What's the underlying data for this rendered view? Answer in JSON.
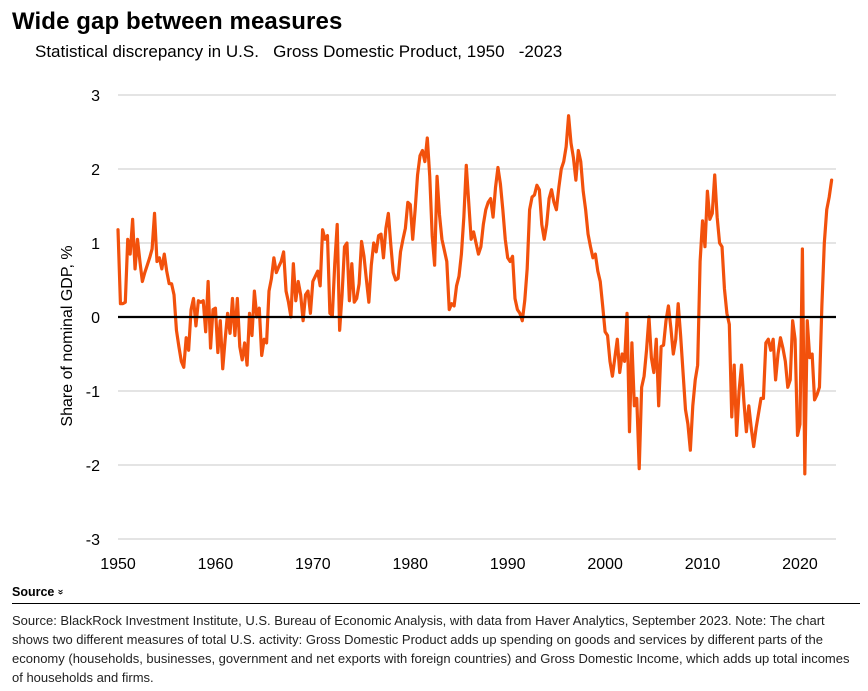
{
  "header": {
    "title": "Wide gap  between measures",
    "subtitle": "Statistical discrepancy in U.S.   Gross Domestic Product, 1950   -2023"
  },
  "chart_data": {
    "type": "line",
    "title": "Wide gap  between measures",
    "subtitle": "Statistical discrepancy in U.S.   Gross Domestic Product, 1950   -2023",
    "xlabel": "",
    "ylabel": "Share of nominal GDP, %",
    "xlim": [
      1950,
      2023.7
    ],
    "ylim": [
      -3,
      3
    ],
    "x_ticks": [
      1950,
      1960,
      1970,
      1980,
      1990,
      2000,
      2010,
      2020
    ],
    "y_ticks": [
      3,
      2,
      1,
      0,
      -1,
      -2,
      -3
    ],
    "y_tick_labels": [
      "3",
      "2",
      "1",
      "0",
      "-1",
      "-2",
      "-3"
    ],
    "grid": "horizontal",
    "zero_line": true,
    "colors": {
      "series": "#f2510c",
      "grid": "#c8c8c8",
      "zero": "#000000"
    },
    "series": [
      {
        "points": [
          [
            1950.0,
            1.18
          ],
          [
            1950.25,
            0.18
          ],
          [
            1950.5,
            0.18
          ],
          [
            1950.75,
            0.2
          ],
          [
            1951.0,
            1.05
          ],
          [
            1951.25,
            0.85
          ],
          [
            1951.5,
            1.32
          ],
          [
            1951.75,
            0.65
          ],
          [
            1952.0,
            1.05
          ],
          [
            1952.25,
            0.75
          ],
          [
            1952.5,
            0.48
          ],
          [
            1952.75,
            0.6
          ],
          [
            1953.0,
            0.7
          ],
          [
            1953.25,
            0.8
          ],
          [
            1953.5,
            0.92
          ],
          [
            1953.75,
            1.4
          ],
          [
            1954.0,
            0.75
          ],
          [
            1954.25,
            0.8
          ],
          [
            1954.5,
            0.65
          ],
          [
            1954.75,
            0.85
          ],
          [
            1955.0,
            0.62
          ],
          [
            1955.25,
            0.45
          ],
          [
            1955.5,
            0.45
          ],
          [
            1955.75,
            0.3
          ],
          [
            1956.0,
            -0.18
          ],
          [
            1956.25,
            -0.4
          ],
          [
            1956.5,
            -0.6
          ],
          [
            1956.75,
            -0.68
          ],
          [
            1957.0,
            -0.28
          ],
          [
            1957.25,
            -0.45
          ],
          [
            1957.5,
            0.1
          ],
          [
            1957.75,
            0.25
          ],
          [
            1958.0,
            -0.12
          ],
          [
            1958.25,
            0.22
          ],
          [
            1958.5,
            0.2
          ],
          [
            1958.75,
            0.22
          ],
          [
            1959.0,
            -0.2
          ],
          [
            1959.25,
            0.48
          ],
          [
            1959.5,
            -0.42
          ],
          [
            1959.75,
            0.1
          ],
          [
            1960.0,
            0.12
          ],
          [
            1960.25,
            -0.48
          ],
          [
            1960.5,
            -0.05
          ],
          [
            1960.75,
            -0.7
          ],
          [
            1961.0,
            -0.3
          ],
          [
            1961.25,
            0.05
          ],
          [
            1961.5,
            -0.22
          ],
          [
            1961.75,
            0.25
          ],
          [
            1962.0,
            -0.25
          ],
          [
            1962.25,
            0.25
          ],
          [
            1962.5,
            -0.4
          ],
          [
            1962.75,
            -0.58
          ],
          [
            1963.0,
            -0.35
          ],
          [
            1963.25,
            -0.65
          ],
          [
            1963.5,
            0.05
          ],
          [
            1963.75,
            -0.25
          ],
          [
            1964.0,
            0.35
          ],
          [
            1964.25,
            0.0
          ],
          [
            1964.5,
            0.12
          ],
          [
            1964.75,
            -0.52
          ],
          [
            1965.0,
            -0.3
          ],
          [
            1965.25,
            -0.35
          ],
          [
            1965.5,
            0.35
          ],
          [
            1965.75,
            0.52
          ],
          [
            1966.0,
            0.8
          ],
          [
            1966.25,
            0.6
          ],
          [
            1966.5,
            0.68
          ],
          [
            1966.75,
            0.75
          ],
          [
            1967.0,
            0.88
          ],
          [
            1967.25,
            0.35
          ],
          [
            1967.5,
            0.2
          ],
          [
            1967.75,
            0.0
          ],
          [
            1968.0,
            0.72
          ],
          [
            1968.25,
            0.22
          ],
          [
            1968.5,
            0.48
          ],
          [
            1968.75,
            0.3
          ],
          [
            1969.0,
            -0.05
          ],
          [
            1969.25,
            0.3
          ],
          [
            1969.5,
            0.35
          ],
          [
            1969.75,
            0.05
          ],
          [
            1970.0,
            0.48
          ],
          [
            1970.25,
            0.55
          ],
          [
            1970.5,
            0.62
          ],
          [
            1970.75,
            0.42
          ],
          [
            1971.0,
            1.18
          ],
          [
            1971.25,
            1.05
          ],
          [
            1971.5,
            1.1
          ],
          [
            1971.75,
            0.05
          ],
          [
            1972.0,
            0.02
          ],
          [
            1972.25,
            0.72
          ],
          [
            1972.5,
            1.25
          ],
          [
            1972.75,
            -0.18
          ],
          [
            1973.0,
            0.3
          ],
          [
            1973.25,
            0.95
          ],
          [
            1973.5,
            1.0
          ],
          [
            1973.75,
            0.22
          ],
          [
            1974.0,
            0.72
          ],
          [
            1974.25,
            0.2
          ],
          [
            1974.5,
            0.25
          ],
          [
            1974.75,
            0.45
          ],
          [
            1975.0,
            1.02
          ],
          [
            1975.25,
            0.82
          ],
          [
            1975.5,
            0.5
          ],
          [
            1975.75,
            0.2
          ],
          [
            1976.0,
            0.7
          ],
          [
            1976.25,
            1.0
          ],
          [
            1976.5,
            0.88
          ],
          [
            1976.75,
            1.1
          ],
          [
            1977.0,
            1.12
          ],
          [
            1977.25,
            0.8
          ],
          [
            1977.5,
            1.2
          ],
          [
            1977.75,
            1.4
          ],
          [
            1978.0,
            0.98
          ],
          [
            1978.25,
            0.6
          ],
          [
            1978.5,
            0.5
          ],
          [
            1978.75,
            0.52
          ],
          [
            1979.0,
            0.88
          ],
          [
            1979.25,
            1.05
          ],
          [
            1979.5,
            1.2
          ],
          [
            1979.75,
            1.55
          ],
          [
            1980.0,
            1.52
          ],
          [
            1980.25,
            1.05
          ],
          [
            1980.5,
            1.45
          ],
          [
            1980.75,
            1.92
          ],
          [
            1981.0,
            2.18
          ],
          [
            1981.25,
            2.25
          ],
          [
            1981.5,
            2.1
          ],
          [
            1981.75,
            2.42
          ],
          [
            1982.0,
            1.9
          ],
          [
            1982.25,
            1.1
          ],
          [
            1982.5,
            0.7
          ],
          [
            1982.75,
            1.9
          ],
          [
            1983.0,
            1.38
          ],
          [
            1983.25,
            1.05
          ],
          [
            1983.5,
            0.9
          ],
          [
            1983.75,
            0.75
          ],
          [
            1984.0,
            0.1
          ],
          [
            1984.25,
            0.18
          ],
          [
            1984.5,
            0.15
          ],
          [
            1984.75,
            0.42
          ],
          [
            1985.0,
            0.55
          ],
          [
            1985.25,
            0.85
          ],
          [
            1985.5,
            1.35
          ],
          [
            1985.75,
            2.05
          ],
          [
            1986.0,
            1.55
          ],
          [
            1986.25,
            1.05
          ],
          [
            1986.5,
            1.15
          ],
          [
            1986.75,
            1.0
          ],
          [
            1987.0,
            0.85
          ],
          [
            1987.25,
            0.95
          ],
          [
            1987.5,
            1.25
          ],
          [
            1987.75,
            1.45
          ],
          [
            1988.0,
            1.55
          ],
          [
            1988.25,
            1.6
          ],
          [
            1988.5,
            1.35
          ],
          [
            1988.75,
            1.75
          ],
          [
            1989.0,
            2.02
          ],
          [
            1989.25,
            1.8
          ],
          [
            1989.5,
            1.45
          ],
          [
            1989.75,
            1.05
          ],
          [
            1990.0,
            0.8
          ],
          [
            1990.25,
            0.75
          ],
          [
            1990.5,
            0.82
          ],
          [
            1990.75,
            0.25
          ],
          [
            1991.0,
            0.1
          ],
          [
            1991.25,
            0.05
          ],
          [
            1991.5,
            -0.05
          ],
          [
            1991.75,
            0.22
          ],
          [
            1992.0,
            0.65
          ],
          [
            1992.25,
            1.45
          ],
          [
            1992.5,
            1.62
          ],
          [
            1992.75,
            1.65
          ],
          [
            1993.0,
            1.78
          ],
          [
            1993.25,
            1.72
          ],
          [
            1993.5,
            1.25
          ],
          [
            1993.75,
            1.05
          ],
          [
            1994.0,
            1.25
          ],
          [
            1994.25,
            1.6
          ],
          [
            1994.5,
            1.72
          ],
          [
            1994.75,
            1.55
          ],
          [
            1995.0,
            1.45
          ],
          [
            1995.25,
            1.75
          ],
          [
            1995.5,
            2.0
          ],
          [
            1995.75,
            2.1
          ],
          [
            1996.0,
            2.3
          ],
          [
            1996.25,
            2.72
          ],
          [
            1996.5,
            2.35
          ],
          [
            1996.75,
            2.15
          ],
          [
            1997.0,
            1.85
          ],
          [
            1997.25,
            2.25
          ],
          [
            1997.5,
            2.1
          ],
          [
            1997.75,
            1.7
          ],
          [
            1998.0,
            1.45
          ],
          [
            1998.25,
            1.12
          ],
          [
            1998.5,
            0.95
          ],
          [
            1998.75,
            0.8
          ],
          [
            1999.0,
            0.85
          ],
          [
            1999.25,
            0.62
          ],
          [
            1999.5,
            0.48
          ],
          [
            1999.75,
            0.15
          ],
          [
            2000.0,
            -0.2
          ],
          [
            2000.25,
            -0.25
          ],
          [
            2000.5,
            -0.6
          ],
          [
            2000.75,
            -0.8
          ],
          [
            2001.0,
            -0.55
          ],
          [
            2001.25,
            -0.3
          ],
          [
            2001.5,
            -0.75
          ],
          [
            2001.75,
            -0.5
          ],
          [
            2002.0,
            -0.6
          ],
          [
            2002.25,
            0.05
          ],
          [
            2002.5,
            -1.55
          ],
          [
            2002.75,
            -0.35
          ],
          [
            2003.0,
            -1.2
          ],
          [
            2003.25,
            -1.1
          ],
          [
            2003.5,
            -2.05
          ],
          [
            2003.75,
            -0.95
          ],
          [
            2004.0,
            -0.8
          ],
          [
            2004.25,
            -0.45
          ],
          [
            2004.5,
            0.0
          ],
          [
            2004.75,
            -0.55
          ],
          [
            2005.0,
            -0.75
          ],
          [
            2005.25,
            -0.3
          ],
          [
            2005.5,
            -1.2
          ],
          [
            2005.75,
            -0.4
          ],
          [
            2006.0,
            -0.38
          ],
          [
            2006.25,
            -0.05
          ],
          [
            2006.5,
            0.15
          ],
          [
            2006.75,
            -0.15
          ],
          [
            2007.0,
            -0.5
          ],
          [
            2007.25,
            -0.3
          ],
          [
            2007.5,
            0.18
          ],
          [
            2007.75,
            -0.25
          ],
          [
            2008.0,
            -0.75
          ],
          [
            2008.25,
            -1.25
          ],
          [
            2008.5,
            -1.45
          ],
          [
            2008.75,
            -1.8
          ],
          [
            2009.0,
            -1.2
          ],
          [
            2009.25,
            -0.85
          ],
          [
            2009.5,
            -0.65
          ],
          [
            2009.75,
            0.75
          ],
          [
            2010.0,
            1.3
          ],
          [
            2010.25,
            0.95
          ],
          [
            2010.5,
            1.7
          ],
          [
            2010.75,
            1.32
          ],
          [
            2011.0,
            1.4
          ],
          [
            2011.25,
            1.92
          ],
          [
            2011.5,
            1.35
          ],
          [
            2011.75,
            1.0
          ],
          [
            2012.0,
            0.95
          ],
          [
            2012.25,
            0.38
          ],
          [
            2012.5,
            0.05
          ],
          [
            2012.75,
            -0.1
          ],
          [
            2013.0,
            -1.35
          ],
          [
            2013.25,
            -0.65
          ],
          [
            2013.5,
            -1.6
          ],
          [
            2013.75,
            -1.0
          ],
          [
            2014.0,
            -0.65
          ],
          [
            2014.25,
            -1.15
          ],
          [
            2014.5,
            -1.55
          ],
          [
            2014.75,
            -1.2
          ],
          [
            2015.0,
            -1.5
          ],
          [
            2015.25,
            -1.75
          ],
          [
            2015.5,
            -1.5
          ],
          [
            2015.75,
            -1.3
          ],
          [
            2016.0,
            -1.1
          ],
          [
            2016.25,
            -1.1
          ],
          [
            2016.5,
            -0.35
          ],
          [
            2016.75,
            -0.3
          ],
          [
            2017.0,
            -0.45
          ],
          [
            2017.25,
            -0.3
          ],
          [
            2017.5,
            -0.85
          ],
          [
            2017.75,
            -0.5
          ],
          [
            2018.0,
            -0.28
          ],
          [
            2018.25,
            -0.42
          ],
          [
            2018.5,
            -0.6
          ],
          [
            2018.75,
            -0.95
          ],
          [
            2019.0,
            -0.85
          ],
          [
            2019.25,
            -0.05
          ],
          [
            2019.5,
            -0.3
          ],
          [
            2019.75,
            -1.6
          ],
          [
            2020.0,
            -1.45
          ],
          [
            2020.25,
            0.92
          ],
          [
            2020.5,
            -2.12
          ],
          [
            2020.75,
            -0.05
          ],
          [
            2021.0,
            -0.55
          ],
          [
            2021.25,
            -0.5
          ],
          [
            2021.5,
            -1.12
          ],
          [
            2021.75,
            -1.05
          ],
          [
            2022.0,
            -0.95
          ],
          [
            2022.25,
            0.15
          ],
          [
            2022.5,
            1.0
          ],
          [
            2022.75,
            1.45
          ],
          [
            2023.0,
            1.62
          ],
          [
            2023.25,
            1.85
          ]
        ]
      }
    ]
  },
  "source": {
    "toggle_label": "Source",
    "text": "Source: BlackRock Investment Institute, U.S. Bureau of Economic Analysis, with data from Haver Analytics, September 2023. Note: The chart shows two different measures of total U.S. activity: Gross Domestic Product adds up spending on goods and services by different parts of the economy (households, businesses, government and net exports with foreign countries) and Gross Domestic Income, which adds up total incomes of households and firms."
  }
}
